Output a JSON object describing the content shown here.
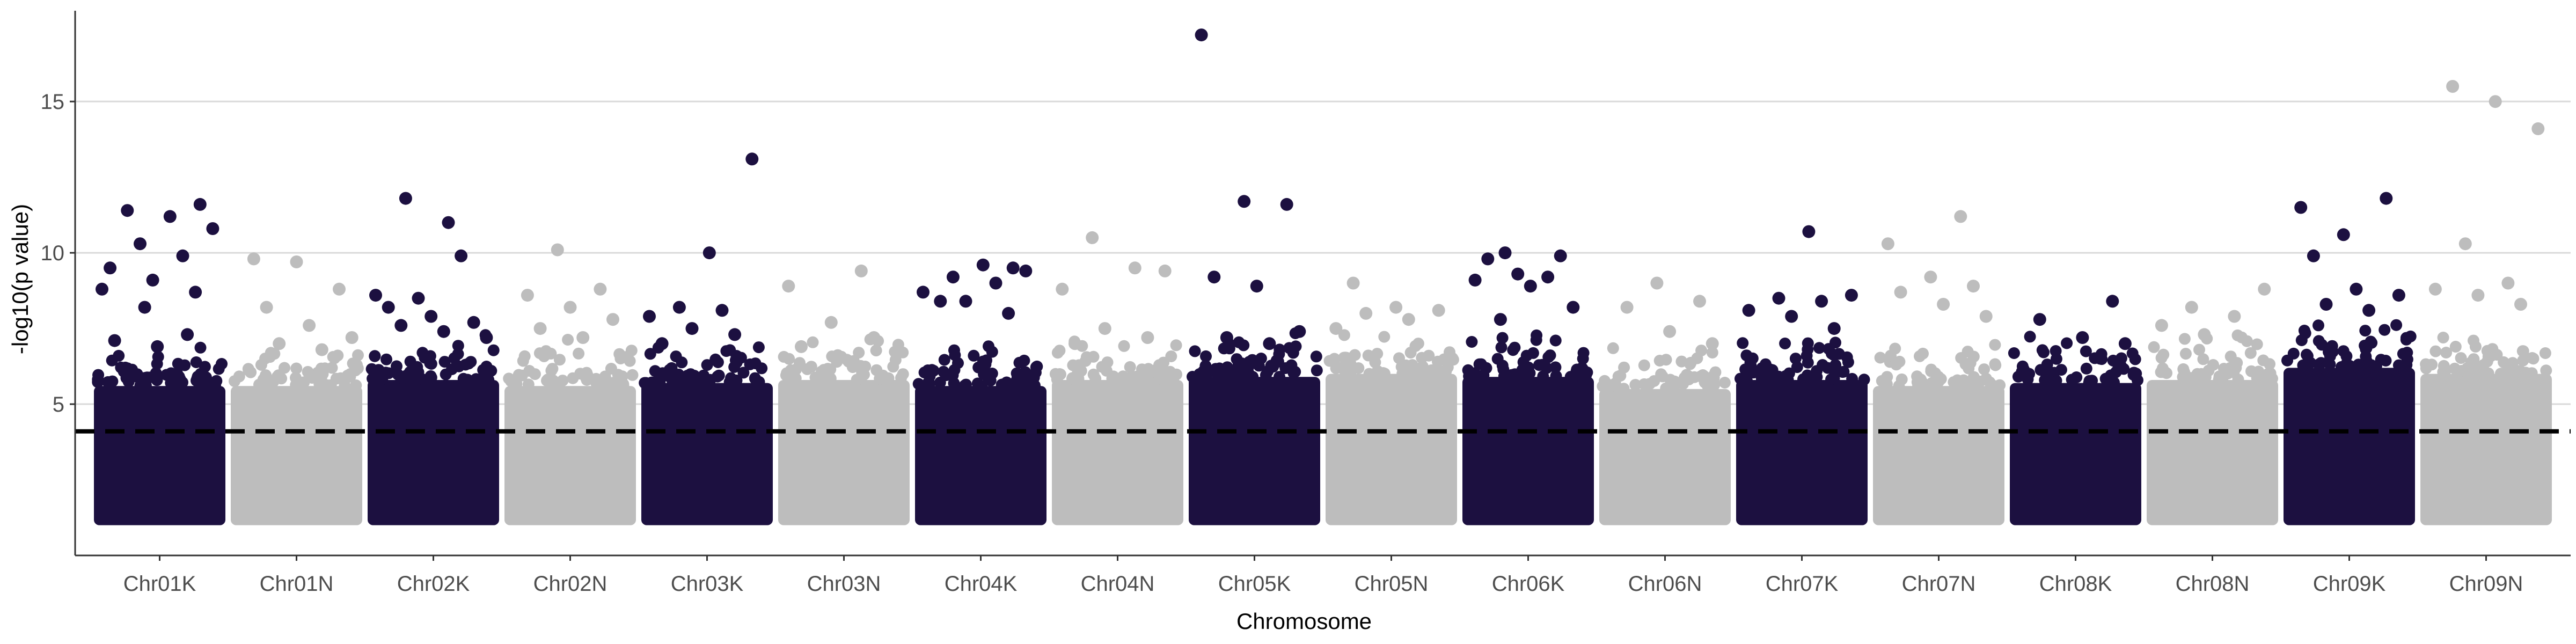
{
  "chart_data": {
    "type": "scatter",
    "subtype": "manhattan",
    "title": "",
    "xlabel": "Chromosome",
    "ylabel": "-log10(p value)",
    "ylim": [
      0,
      18
    ],
    "yticks": [
      5,
      10,
      15
    ],
    "grid": "horizontal major gridlines",
    "threshold": 4.1,
    "threshold_style": "dashed black line",
    "colors": {
      "odd": "#1c1040",
      "even": "#bdbdbd",
      "threshold": "#000000",
      "grid": "#d9d9d9",
      "axis": "#333333"
    },
    "baseline_min": 1.0,
    "categories": [
      "Chr01K",
      "Chr01N",
      "Chr02K",
      "Chr02N",
      "Chr03K",
      "Chr03N",
      "Chr04K",
      "Chr04N",
      "Chr05K",
      "Chr05N",
      "Chr06K",
      "Chr06N",
      "Chr07K",
      "Chr07N",
      "Chr08K",
      "Chr08N",
      "Chr09K",
      "Chr09N"
    ],
    "series": [
      {
        "chromosome": "Chr01K",
        "band_top": 5.6,
        "peak_points": [
          8.8,
          8.2,
          7.3,
          7.1,
          6.9,
          11.6,
          11.4,
          11.2,
          10.8,
          10.3,
          9.9,
          9.5,
          9.1,
          8.7
        ]
      },
      {
        "chromosome": "Chr01N",
        "band_top": 5.6,
        "peak_points": [
          9.8,
          9.7,
          8.8,
          8.2,
          7.6,
          7.2,
          7.0,
          6.8
        ]
      },
      {
        "chromosome": "Chr02K",
        "band_top": 5.8,
        "peak_points": [
          11.8,
          11.0,
          8.6,
          8.5,
          9.9,
          8.2,
          7.9,
          7.7,
          7.6,
          7.4,
          7.2
        ]
      },
      {
        "chromosome": "Chr02N",
        "band_top": 5.6,
        "peak_points": [
          10.1,
          8.8,
          8.6,
          8.2,
          7.8,
          7.5,
          7.2
        ]
      },
      {
        "chromosome": "Chr03K",
        "band_top": 5.7,
        "peak_points": [
          10.0,
          13.1,
          8.2,
          8.1,
          7.9,
          7.5,
          7.3,
          7.0
        ]
      },
      {
        "chromosome": "Chr03N",
        "band_top": 5.8,
        "peak_points": [
          9.4,
          8.9,
          7.7,
          7.2,
          6.9
        ]
      },
      {
        "chromosome": "Chr04K",
        "band_top": 5.6,
        "peak_points": [
          9.5,
          8.4,
          9.6,
          9.4,
          9.2,
          9.0,
          8.7,
          8.4,
          8.0
        ]
      },
      {
        "chromosome": "Chr04N",
        "band_top": 5.8,
        "peak_points": [
          9.4,
          10.5,
          9.5,
          8.8,
          7.5,
          7.2,
          7.0
        ]
      },
      {
        "chromosome": "Chr05K",
        "band_top": 5.9,
        "peak_points": [
          17.2,
          11.7,
          11.6,
          9.2,
          8.9,
          7.4,
          7.2,
          7.0
        ]
      },
      {
        "chromosome": "Chr05N",
        "band_top": 6.0,
        "peak_points": [
          9.0,
          8.2,
          8.1,
          8.0,
          7.8,
          7.5
        ]
      },
      {
        "chromosome": "Chr06K",
        "band_top": 5.9,
        "peak_points": [
          10.0,
          9.2,
          9.1,
          9.3,
          9.9,
          9.8,
          8.9,
          8.2,
          7.8
        ]
      },
      {
        "chromosome": "Chr06N",
        "band_top": 5.5,
        "peak_points": [
          9.0,
          8.4,
          8.2,
          7.4,
          7.0
        ]
      },
      {
        "chromosome": "Chr07K",
        "band_top": 5.8,
        "peak_points": [
          10.7,
          8.6,
          8.5,
          8.4,
          8.1,
          7.9,
          7.5
        ]
      },
      {
        "chromosome": "Chr07N",
        "band_top": 5.6,
        "peak_points": [
          11.2,
          10.3,
          9.2,
          8.9,
          8.7,
          8.3,
          7.9
        ]
      },
      {
        "chromosome": "Chr08K",
        "band_top": 5.7,
        "peak_points": [
          8.4,
          7.8,
          7.2,
          7.0
        ]
      },
      {
        "chromosome": "Chr08N",
        "band_top": 5.8,
        "peak_points": [
          8.8,
          8.2,
          7.9,
          7.6,
          7.3
        ]
      },
      {
        "chromosome": "Chr09K",
        "band_top": 6.2,
        "peak_points": [
          11.5,
          10.6,
          11.8,
          9.9,
          8.8,
          8.6,
          8.3,
          8.1
        ]
      },
      {
        "chromosome": "Chr09N",
        "band_top": 6.0,
        "peak_points": [
          15.5,
          15.0,
          14.1,
          10.3,
          9.0,
          8.8,
          8.6,
          8.3
        ]
      }
    ]
  }
}
